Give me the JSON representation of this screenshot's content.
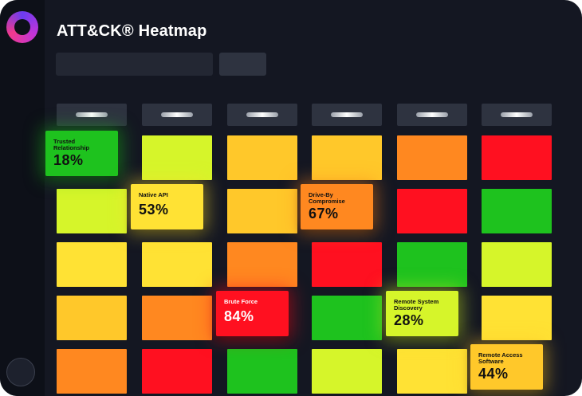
{
  "header": {
    "title": "ATT&CK® Heatmap"
  },
  "colors": {
    "green": "#1ec21e",
    "lime": "#d6f52a",
    "yellow": "#ffe234",
    "amber": "#ffc82a",
    "orange": "#ff8820",
    "red": "#ff1020"
  },
  "grid": {
    "columns": 6,
    "rows": [
      [
        "green",
        "lime",
        "amber",
        "amber",
        "orange",
        "red"
      ],
      [
        "lime",
        "yellow",
        "amber",
        "orange",
        "red",
        "green"
      ],
      [
        "yellow",
        "yellow",
        "orange",
        "red",
        "green",
        "lime"
      ],
      [
        "amber",
        "orange",
        "red",
        "green",
        "lime",
        "yellow"
      ],
      [
        "orange",
        "red",
        "green",
        "lime",
        "yellow",
        "amber"
      ]
    ]
  },
  "callouts": [
    {
      "row": 0,
      "col": 0,
      "label": "Trusted Relationship",
      "value": "18%",
      "color": "green"
    },
    {
      "row": 1,
      "col": 1,
      "label": "Native API",
      "value": "53%",
      "color": "yellow"
    },
    {
      "row": 1,
      "col": 3,
      "label": "Drive-By Compromise",
      "value": "67%",
      "color": "orange"
    },
    {
      "row": 3,
      "col": 2,
      "label": "Brute Force",
      "value": "84%",
      "color": "red"
    },
    {
      "row": 3,
      "col": 4,
      "label": "Remote System Discovery",
      "value": "28%",
      "color": "lime"
    },
    {
      "row": 4,
      "col": 5,
      "label": "Remote Access Software",
      "value": "44%",
      "color": "amber"
    }
  ]
}
